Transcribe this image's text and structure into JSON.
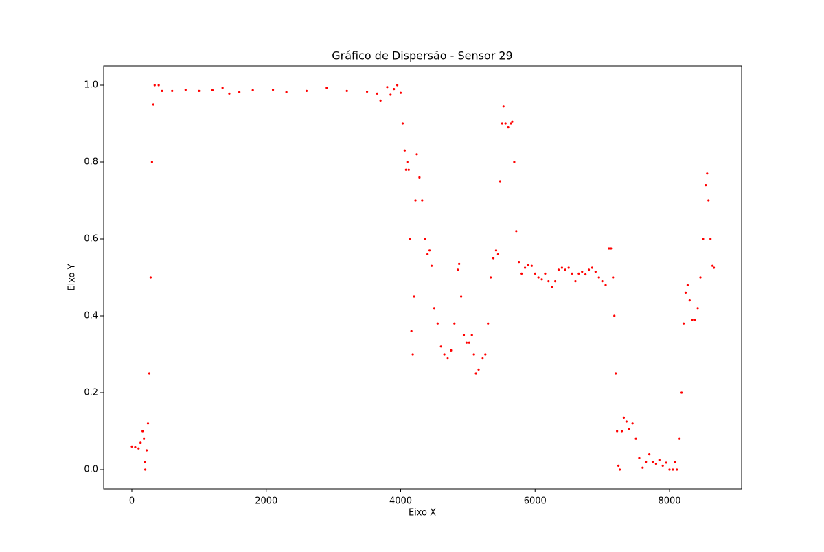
{
  "chart_data": {
    "type": "scatter",
    "title": "Gráfico de Dispersão - Sensor 29",
    "x_label": "Eixo X",
    "y_label": "Eixo Y",
    "color": "#ff0000",
    "xlim": [
      -419,
      9073
    ],
    "ylim": [
      -0.05,
      1.05
    ],
    "xticks": [
      0,
      2000,
      4000,
      6000,
      8000
    ],
    "yticks": [
      {
        "value": 0,
        "label": "0.0"
      },
      0.2,
      0.4,
      0.6,
      0.8,
      {
        "value": 1,
        "label": "1.0"
      }
    ],
    "x": [
      0,
      50,
      100,
      130,
      160,
      180,
      190,
      200,
      220,
      240,
      260,
      280,
      300,
      320,
      340,
      400,
      450,
      600,
      800,
      1000,
      1200,
      1350,
      1450,
      1600,
      1800,
      2100,
      2300,
      2600,
      2900,
      3200,
      3500,
      3650,
      3700,
      3800,
      3850,
      3900,
      3950,
      4000,
      4030,
      4060,
      4080,
      4100,
      4120,
      4140,
      4160,
      4180,
      4200,
      4220,
      4240,
      4280,
      4320,
      4360,
      4400,
      4430,
      4460,
      4500,
      4550,
      4600,
      4650,
      4700,
      4750,
      4800,
      4850,
      4870,
      4900,
      4940,
      4980,
      5020,
      5060,
      5090,
      5120,
      5160,
      5220,
      5260,
      5300,
      5340,
      5380,
      5420,
      5450,
      5480,
      5510,
      5530,
      5560,
      5600,
      5640,
      5660,
      5690,
      5720,
      5760,
      5800,
      5850,
      5900,
      5950,
      6000,
      6050,
      6100,
      6150,
      6200,
      6250,
      6300,
      6350,
      6400,
      6450,
      6500,
      6550,
      6600,
      6650,
      6700,
      6750,
      6800,
      6850,
      6900,
      6950,
      7000,
      7050,
      7100,
      7130,
      7160,
      7180,
      7200,
      7220,
      7240,
      7260,
      7290,
      7320,
      7360,
      7400,
      7450,
      7500,
      7550,
      7600,
      7650,
      7700,
      7750,
      7800,
      7850,
      7900,
      7950,
      8000,
      8050,
      8080,
      8110,
      8150,
      8180,
      8210,
      8240,
      8270,
      8300,
      8340,
      8380,
      8420,
      8460,
      8500,
      8540,
      8560,
      8580,
      8610,
      8640,
      8660
    ],
    "values": [
      0.06,
      0.058,
      0.055,
      0.07,
      0.1,
      0.08,
      0.02,
      0.0,
      0.05,
      0.12,
      0.25,
      0.5,
      0.8,
      0.95,
      1.0,
      1.0,
      0.985,
      0.985,
      0.988,
      0.985,
      0.987,
      0.993,
      0.978,
      0.982,
      0.987,
      0.988,
      0.982,
      0.985,
      0.993,
      0.985,
      0.983,
      0.978,
      0.96,
      0.995,
      0.975,
      0.99,
      1.0,
      0.98,
      0.9,
      0.83,
      0.78,
      0.8,
      0.78,
      0.6,
      0.36,
      0.3,
      0.45,
      0.7,
      0.82,
      0.76,
      0.7,
      0.6,
      0.56,
      0.57,
      0.53,
      0.42,
      0.38,
      0.32,
      0.3,
      0.29,
      0.31,
      0.38,
      0.52,
      0.535,
      0.45,
      0.35,
      0.33,
      0.33,
      0.35,
      0.3,
      0.25,
      0.26,
      0.29,
      0.3,
      0.38,
      0.5,
      0.55,
      0.57,
      0.56,
      0.75,
      0.9,
      0.945,
      0.9,
      0.89,
      0.9,
      0.905,
      0.8,
      0.62,
      0.54,
      0.51,
      0.525,
      0.532,
      0.53,
      0.51,
      0.5,
      0.495,
      0.51,
      0.49,
      0.475,
      0.49,
      0.52,
      0.525,
      0.52,
      0.525,
      0.51,
      0.49,
      0.51,
      0.515,
      0.508,
      0.52,
      0.525,
      0.515,
      0.5,
      0.49,
      0.48,
      0.575,
      0.575,
      0.5,
      0.4,
      0.25,
      0.1,
      0.01,
      0.0,
      0.1,
      0.135,
      0.125,
      0.105,
      0.12,
      0.08,
      0.03,
      0.005,
      0.02,
      0.04,
      0.02,
      0.015,
      0.025,
      0.01,
      0.018,
      0.0,
      0.0,
      0.02,
      0.0,
      0.08,
      0.2,
      0.38,
      0.46,
      0.48,
      0.44,
      0.39,
      0.39,
      0.42,
      0.5,
      0.6,
      0.74,
      0.77,
      0.7,
      0.6,
      0.53,
      0.525
    ]
  }
}
